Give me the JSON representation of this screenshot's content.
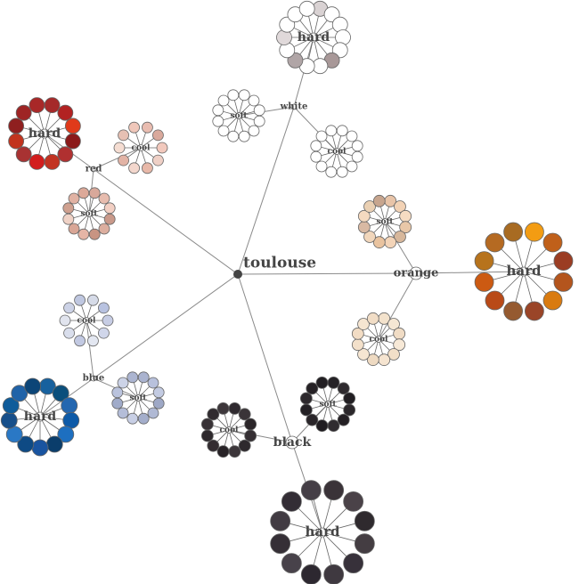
{
  "root": {
    "label": "toulouse",
    "color": "#444444"
  },
  "branches": [
    {
      "key": "white",
      "label": "white",
      "groups": [
        {
          "key": "hard",
          "label": "hard",
          "colors": [
            "#d9d2d3",
            "#ffffff",
            "#ffffff",
            "#ffffff",
            "#ffffff",
            "#a89898",
            "#ffffff",
            "#ffffff",
            "#b0a5a6",
            "#ffffff",
            "#e0d9da",
            "#ffffff",
            "#ffffff",
            "#ffffff"
          ]
        },
        {
          "key": "soft",
          "label": "soft",
          "colors": [
            "#ffffff",
            "#ffffff",
            "#ffffff",
            "#ffffff",
            "#ffffff",
            "#ffffff",
            "#ffffff",
            "#ffffff",
            "#ffffff",
            "#ffffff",
            "#ffffff",
            "#ffffff"
          ]
        },
        {
          "key": "cool",
          "label": "cool",
          "colors": [
            "#ffffff",
            "#ffffff",
            "#ffffff",
            "#ffffff",
            "#ffffff",
            "#ffffff",
            "#ffffff",
            "#ffffff",
            "#ffffff",
            "#ffffff",
            "#ffffff",
            "#ffffff"
          ]
        }
      ]
    },
    {
      "key": "red",
      "label": "red",
      "groups": [
        {
          "key": "hard",
          "label": "hard",
          "colors": [
            "#a52a2a",
            "#b22222",
            "#e03a1a",
            "#8b1a1a",
            "#b03030",
            "#c23322",
            "#d21d1d",
            "#a83232",
            "#c2341e",
            "#8f1f1f",
            "#9e2424",
            "#a82828"
          ]
        },
        {
          "key": "cool",
          "label": "cool",
          "colors": [
            "#e9bcb0",
            "#d9a99c",
            "#f2c9bd",
            "#efd0c6",
            "#e8b8a8",
            "#f3d7cd",
            "#e2b3a5",
            "#f5ddd2",
            "#e6c0b3",
            "#f0c7ba"
          ]
        },
        {
          "key": "soft",
          "label": "soft",
          "colors": [
            "#d8a89a",
            "#e7bcae",
            "#f2cfc3",
            "#c9998a",
            "#dcae9f",
            "#c89482",
            "#e5b5a6",
            "#d9a696",
            "#f0d2c6",
            "#cfa08f",
            "#e1b2a3",
            "#dca999"
          ]
        }
      ]
    },
    {
      "key": "orange",
      "label": "orange",
      "groups": [
        {
          "key": "hard",
          "label": "hard",
          "colors": [
            "#f39c12",
            "#c0601a",
            "#9b3d23",
            "#b4551d",
            "#d97b10",
            "#9a4528",
            "#955a30",
            "#b94a18",
            "#cc5a12",
            "#b7731c",
            "#b56a22",
            "#a86b22"
          ]
        },
        {
          "key": "soft",
          "label": "soft",
          "colors": [
            "#e8c4a8",
            "#f2d2b5",
            "#f6dcc2",
            "#e8c7a8",
            "#d7b79b",
            "#f3d4b8",
            "#e9c39f",
            "#f1d6bb",
            "#d8b9a3",
            "#f5dac0",
            "#ead0b3",
            "#c7a58e"
          ]
        },
        {
          "key": "cool",
          "label": "cool",
          "colors": [
            "#f3e2cc",
            "#f5e7d4",
            "#f0dcc5",
            "#f7e9d7",
            "#f2dfc8",
            "#f5e4d0",
            "#eedac2",
            "#f6e6d2",
            "#f3e0ca",
            "#f2dcc4",
            "#f5e5d1",
            "#f1ddc6"
          ]
        }
      ]
    },
    {
      "key": "blue",
      "label": "blue",
      "groups": [
        {
          "key": "cool",
          "label": "cool",
          "colors": [
            "#d6dbe8",
            "#b8c2e0",
            "#c7cde4",
            "#d0d6ea",
            "#e3e7f1",
            "#c2c9e2",
            "#d9deec",
            "#e1e4ee",
            "#ccd2e6",
            "#bfc7e0"
          ]
        },
        {
          "key": "hard",
          "label": "hard",
          "colors": [
            "#17619e",
            "#0b4f7c",
            "#2467b0",
            "#0d5aa8",
            "#1d6fc0",
            "#0a3d6b",
            "#1954a0",
            "#0e4a84",
            "#2a78c5",
            "#174f8a",
            "#0f5c9a",
            "#2063a8",
            "#0c4577"
          ]
        },
        {
          "key": "soft",
          "label": "soft",
          "colors": [
            "#aab3cf",
            "#b8c1dc",
            "#c3cbe2",
            "#9ea8c6",
            "#b0b9d4",
            "#a4aecb",
            "#c8cfe5",
            "#b4bdd8",
            "#a0abc9",
            "#bac3dd",
            "#ccd3e7",
            "#acb5d1"
          ]
        }
      ]
    },
    {
      "key": "black",
      "label": "black",
      "groups": [
        {
          "key": "cool",
          "label": "cool",
          "colors": [
            "#2f2a2f",
            "#3a3438",
            "#2b2629",
            "#352f33",
            "#2e292d",
            "#3c363a",
            "#282327",
            "#332d31",
            "#2d282c",
            "#383236",
            "#302b2f",
            "#3d373b"
          ]
        },
        {
          "key": "soft",
          "label": "soft",
          "colors": [
            "#252226",
            "#2e2a2e",
            "#211e22",
            "#2b272b",
            "#242024",
            "#302c30",
            "#1f1c20",
            "#292529",
            "#232024",
            "#2d292d",
            "#262226",
            "#221f23"
          ]
        },
        {
          "key": "hard",
          "label": "hard",
          "colors": [
            "#3a3338",
            "#4a4248",
            "#2f2a2e",
            "#443d42",
            "#37313a",
            "#3f3940",
            "#2d2830",
            "#48424a",
            "#352f36",
            "#413b42",
            "#332d35",
            "#453f46"
          ]
        }
      ]
    }
  ]
}
